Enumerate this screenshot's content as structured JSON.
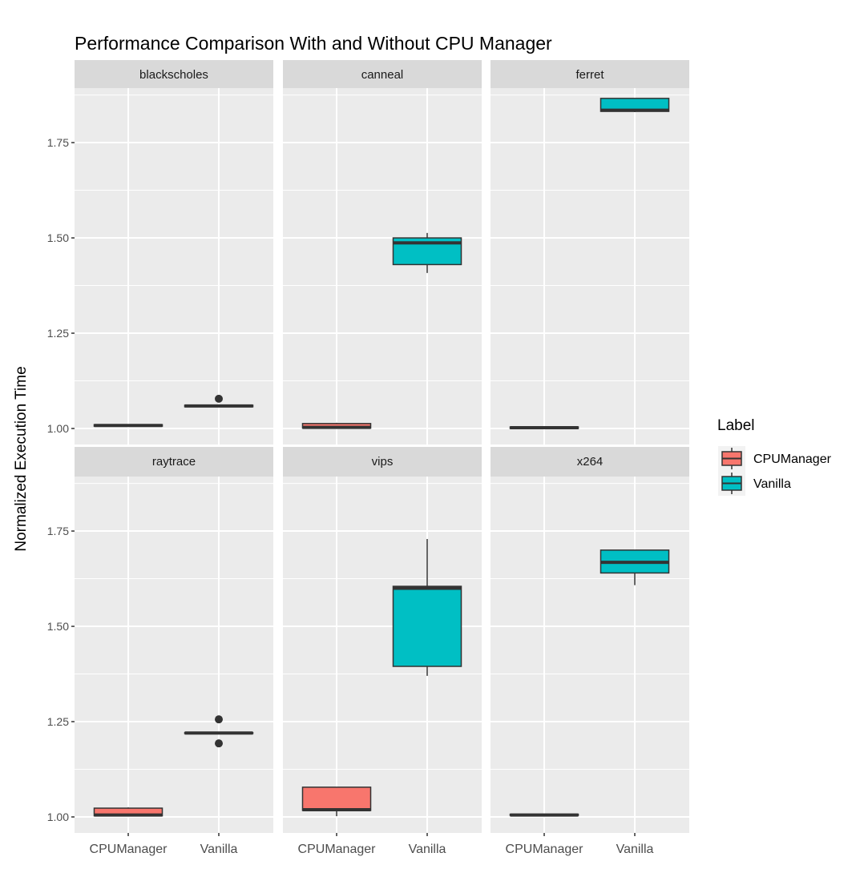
{
  "chart_data": {
    "type": "boxplot",
    "title": "Performance Comparison With and Without CPU Manager",
    "xlabel": "",
    "ylabel": "Normalized Execution Time",
    "ylim": [
      0.958,
      1.893
    ],
    "yticks": [
      1.0,
      1.25,
      1.5,
      1.75
    ],
    "ytick_labels": [
      "1.00",
      "1.25",
      "1.50",
      "1.75"
    ],
    "categories": [
      "CPUManager",
      "Vanilla"
    ],
    "grid": true,
    "legend": {
      "title": "Label",
      "position": "right",
      "entries": [
        "CPUManager",
        "Vanilla"
      ]
    },
    "colors": {
      "CPUManager": "#F8766D",
      "Vanilla": "#00BFC4"
    },
    "panels": [
      {
        "name": "blackscholes",
        "boxes": [
          {
            "label": "CPUManager",
            "min": 1.005,
            "q1": 1.006,
            "median": 1.008,
            "q3": 1.01,
            "max": 1.011,
            "outliers": []
          },
          {
            "label": "Vanilla",
            "min": 1.056,
            "q1": 1.057,
            "median": 1.059,
            "q3": 1.061,
            "max": 1.062,
            "outliers": [
              1.078
            ]
          }
        ]
      },
      {
        "name": "canneal",
        "boxes": [
          {
            "label": "CPUManager",
            "min": 1.0,
            "q1": 1.001,
            "median": 1.003,
            "q3": 1.013,
            "max": 1.015,
            "outliers": []
          },
          {
            "label": "Vanilla",
            "min": 1.408,
            "q1": 1.43,
            "median": 1.487,
            "q3": 1.5,
            "max": 1.513,
            "outliers": []
          }
        ]
      },
      {
        "name": "ferret",
        "boxes": [
          {
            "label": "CPUManager",
            "min": 1.0,
            "q1": 1.0,
            "median": 1.002,
            "q3": 1.004,
            "max": 1.004,
            "outliers": []
          },
          {
            "label": "Vanilla",
            "min": 1.83,
            "q1": 1.832,
            "median": 1.835,
            "q3": 1.866,
            "max": 1.866,
            "outliers": []
          }
        ]
      },
      {
        "name": "raytrace",
        "boxes": [
          {
            "label": "CPUManager",
            "min": 1.002,
            "q1": 1.003,
            "median": 1.005,
            "q3": 1.023,
            "max": 1.025,
            "outliers": []
          },
          {
            "label": "Vanilla",
            "min": 1.218,
            "q1": 1.219,
            "median": 1.22,
            "q3": 1.221,
            "max": 1.222,
            "outliers": [
              1.256,
              1.193
            ]
          }
        ]
      },
      {
        "name": "vips",
        "boxes": [
          {
            "label": "CPUManager",
            "min": 1.002,
            "q1": 1.017,
            "median": 1.019,
            "q3": 1.078,
            "max": 1.078,
            "outliers": []
          },
          {
            "label": "Vanilla",
            "min": 1.37,
            "q1": 1.395,
            "median": 1.6,
            "q3": 1.605,
            "max": 1.729,
            "outliers": []
          }
        ]
      },
      {
        "name": "x264",
        "boxes": [
          {
            "label": "CPUManager",
            "min": 1.003,
            "q1": 1.004,
            "median": 1.005,
            "q3": 1.007,
            "max": 1.008,
            "outliers": []
          },
          {
            "label": "Vanilla",
            "min": 1.608,
            "q1": 1.64,
            "median": 1.668,
            "q3": 1.7,
            "max": 1.7,
            "outliers": []
          }
        ]
      }
    ]
  }
}
